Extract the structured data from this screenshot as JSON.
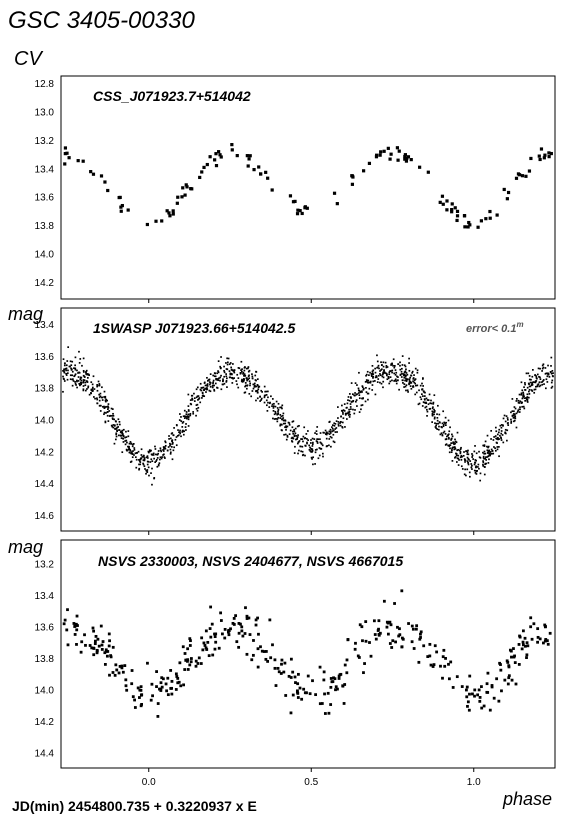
{
  "header": {
    "title": "GSC 3405-00330",
    "subtitle": "CV"
  },
  "footer": {
    "formula": "JD(min) 2454800.735 + 0.3220937 x E",
    "xlabel": "phase"
  },
  "chart_data": [
    {
      "type": "scatter",
      "title": "CSS_J071923.7+514042",
      "ylabel": "",
      "xlim": [
        -0.27,
        1.25
      ],
      "ylim": [
        12.75,
        14.32
      ],
      "y_inverted": true,
      "y_ticks": [
        "12.8",
        "13.0",
        "13.2",
        "13.4",
        "13.6",
        "13.8",
        "14.0",
        "14.2"
      ],
      "x_ticks": [],
      "model": {
        "max_mag": 13.27,
        "min1_depth": 0.45,
        "min2_depth": 0.36,
        "width": 0.1,
        "extra": 0.0
      },
      "series": [
        {
          "n": 140,
          "scatter": 0.03,
          "marker": "square",
          "size": 3.2
        }
      ]
    },
    {
      "type": "scatter",
      "title": "1SWASP J071923.66+514042.5",
      "annotation": "error< 0.1",
      "annotation_sup": "m",
      "ylabel": "mag",
      "xlim": [
        -0.27,
        1.25
      ],
      "ylim": [
        13.3,
        14.7
      ],
      "y_inverted": true,
      "y_ticks": [
        "13.4",
        "13.6",
        "13.8",
        "14.0",
        "14.2",
        "14.4",
        "14.6"
      ],
      "x_ticks": [],
      "model": {
        "max_mag": 13.66,
        "min1_depth": 0.53,
        "min2_depth": 0.43,
        "width": 0.1,
        "extra": 0.0
      },
      "series": [
        {
          "n": 1700,
          "scatter": 0.045,
          "marker": "dot",
          "size": 1.7
        }
      ]
    },
    {
      "type": "scatter",
      "title": "NSVS 2330003, NSVS 2404677, NSVS 4667015",
      "ylabel": "mag",
      "xlim": [
        -0.27,
        1.25
      ],
      "ylim": [
        13.05,
        14.5
      ],
      "y_inverted": true,
      "y_ticks": [
        "13.2",
        "13.4",
        "13.6",
        "13.8",
        "14.0",
        "14.2",
        "14.4"
      ],
      "x_ticks": [
        "0.0",
        "0.5",
        "1.0"
      ],
      "model": {
        "max_mag": 13.58,
        "min1_depth": 0.37,
        "min2_depth": 0.37,
        "width": 0.1,
        "extra": 0.0
      },
      "series": [
        {
          "n": 420,
          "scatter": 0.075,
          "marker": "square",
          "size": 2.8
        }
      ]
    }
  ]
}
